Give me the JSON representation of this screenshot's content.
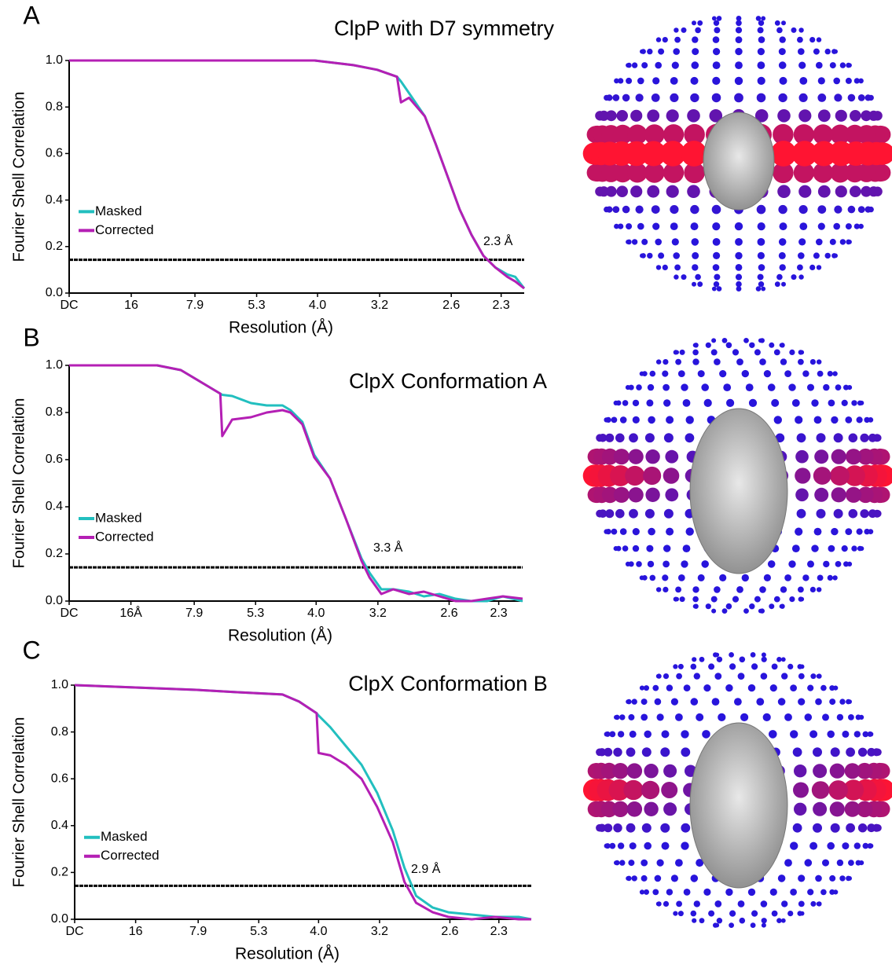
{
  "chart_data": [
    {
      "type": "line",
      "panel": "A",
      "title": "ClpP with D7 symmetry",
      "xlabel": "Resolution (Å)",
      "ylabel": "Fourier Shell Correlation",
      "x": [
        0,
        0.128,
        0.247,
        0.286,
        0.31,
        0.33,
        0.334,
        0.342,
        0.358,
        0.369,
        0.381,
        0.393,
        0.405,
        0.417,
        0.429,
        0.441,
        0.449,
        0.458
      ],
      "series": [
        {
          "name": "Masked",
          "color": "#22bfbf",
          "values": [
            1.0,
            1.0,
            1.0,
            0.98,
            0.96,
            0.93,
            0.91,
            0.86,
            0.76,
            0.64,
            0.5,
            0.36,
            0.25,
            0.16,
            0.11,
            0.08,
            0.07,
            0.02
          ]
        },
        {
          "name": "Corrected",
          "color": "#b41fb4",
          "values": [
            1.0,
            1.0,
            1.0,
            0.98,
            0.96,
            0.93,
            0.82,
            0.84,
            0.76,
            0.64,
            0.5,
            0.36,
            0.25,
            0.16,
            0.11,
            0.07,
            0.05,
            0.02
          ]
        }
      ],
      "threshold": 0.143,
      "annotation": "2.3 Å",
      "xlim": [
        0,
        0.458
      ],
      "ylim": [
        0,
        1
      ],
      "xticks": [
        {
          "value": 0,
          "label": "DC"
        },
        {
          "value": 0.0625,
          "label": "16"
        },
        {
          "value": 0.1266,
          "label": "7.9"
        },
        {
          "value": 0.1887,
          "label": "5.3"
        },
        {
          "value": 0.25,
          "label": "4.0"
        },
        {
          "value": 0.3125,
          "label": "3.2"
        },
        {
          "value": 0.3846,
          "label": "2.6"
        },
        {
          "value": 0.4348,
          "label": "2.3"
        }
      ],
      "yticks": [
        {
          "value": 0,
          "label": "0.0"
        },
        0.2,
        0.4,
        0.6,
        0.8,
        {
          "value": 1,
          "label": "1.0"
        }
      ]
    },
    {
      "type": "line",
      "panel": "B",
      "title": "ClpX Conformation A",
      "xlabel": "Resolution (Å)",
      "ylabel": "Fourier Shell Correlation",
      "x": [
        0,
        0.089,
        0.113,
        0.133,
        0.153,
        0.155,
        0.165,
        0.184,
        0.2,
        0.216,
        0.224,
        0.236,
        0.248,
        0.264,
        0.28,
        0.296,
        0.304,
        0.316,
        0.328,
        0.344,
        0.359,
        0.375,
        0.391,
        0.407,
        0.423,
        0.439,
        0.459
      ],
      "series": [
        {
          "name": "Masked",
          "color": "#22bfbf",
          "values": [
            1.0,
            1.0,
            0.98,
            0.93,
            0.88,
            0.875,
            0.87,
            0.84,
            0.83,
            0.83,
            0.81,
            0.76,
            0.62,
            0.52,
            0.35,
            0.18,
            0.12,
            0.05,
            0.05,
            0.04,
            0.02,
            0.03,
            0.01,
            0.0,
            0.0,
            0.02,
            0.0
          ]
        },
        {
          "name": "Corrected",
          "color": "#b41fb4",
          "values": [
            1.0,
            1.0,
            0.98,
            0.93,
            0.88,
            0.7,
            0.77,
            0.78,
            0.8,
            0.81,
            0.8,
            0.75,
            0.61,
            0.52,
            0.35,
            0.17,
            0.1,
            0.03,
            0.05,
            0.03,
            0.04,
            0.02,
            0.0,
            0.0,
            0.01,
            0.02,
            0.01
          ]
        }
      ],
      "threshold": 0.143,
      "annotation": "3.3 Å",
      "xlim": [
        0,
        0.459
      ],
      "ylim": [
        0,
        1
      ],
      "xticks": [
        {
          "value": 0,
          "label": "DC"
        },
        {
          "value": 0.0625,
          "label": "16Å"
        },
        {
          "value": 0.1266,
          "label": "7.9"
        },
        {
          "value": 0.1887,
          "label": "5.3"
        },
        {
          "value": 0.25,
          "label": "4.0"
        },
        {
          "value": 0.3125,
          "label": "3.2"
        },
        {
          "value": 0.3846,
          "label": "2.6"
        },
        {
          "value": 0.4348,
          "label": "2.3"
        }
      ],
      "yticks": [
        {
          "value": 0,
          "label": "0.0"
        },
        0.2,
        0.4,
        0.6,
        0.8,
        {
          "value": 1,
          "label": "1.0"
        }
      ]
    },
    {
      "type": "line",
      "panel": "C",
      "title": "ClpX Conformation B",
      "xlabel": "Resolution (Å)",
      "ylabel": "Fourier Shell Correlation",
      "x": [
        0,
        0.125,
        0.165,
        0.213,
        0.23,
        0.248,
        0.25,
        0.262,
        0.27,
        0.278,
        0.294,
        0.31,
        0.326,
        0.338,
        0.35,
        0.367,
        0.383,
        0.407,
        0.431,
        0.455,
        0.468
      ],
      "series": [
        {
          "name": "Masked",
          "color": "#22bfbf",
          "values": [
            1.0,
            0.98,
            0.97,
            0.96,
            0.93,
            0.88,
            0.87,
            0.82,
            0.78,
            0.74,
            0.66,
            0.54,
            0.38,
            0.22,
            0.1,
            0.05,
            0.03,
            0.02,
            0.01,
            0.01,
            0.0
          ]
        },
        {
          "name": "Corrected",
          "color": "#b41fb4",
          "values": [
            1.0,
            0.98,
            0.97,
            0.96,
            0.93,
            0.88,
            0.71,
            0.7,
            0.68,
            0.66,
            0.6,
            0.48,
            0.33,
            0.16,
            0.07,
            0.03,
            0.01,
            0.0,
            0.01,
            0.0,
            0.0
          ]
        }
      ],
      "threshold": 0.143,
      "annotation": "2.9 Å",
      "xlim": [
        0,
        0.468
      ],
      "ylim": [
        0,
        1
      ],
      "xticks": [
        {
          "value": 0,
          "label": "DC"
        },
        {
          "value": 0.0625,
          "label": "16"
        },
        {
          "value": 0.1266,
          "label": "7.9"
        },
        {
          "value": 0.1887,
          "label": "5.3"
        },
        {
          "value": 0.25,
          "label": "4.0"
        },
        {
          "value": 0.3125,
          "label": "3.2"
        },
        {
          "value": 0.3846,
          "label": "2.6"
        },
        {
          "value": 0.4348,
          "label": "2.3"
        }
      ],
      "yticks": [
        {
          "value": 0,
          "label": "0.0"
        },
        0.2,
        0.4,
        0.6,
        0.8,
        {
          "value": 1,
          "label": "1.0"
        }
      ]
    }
  ]
}
